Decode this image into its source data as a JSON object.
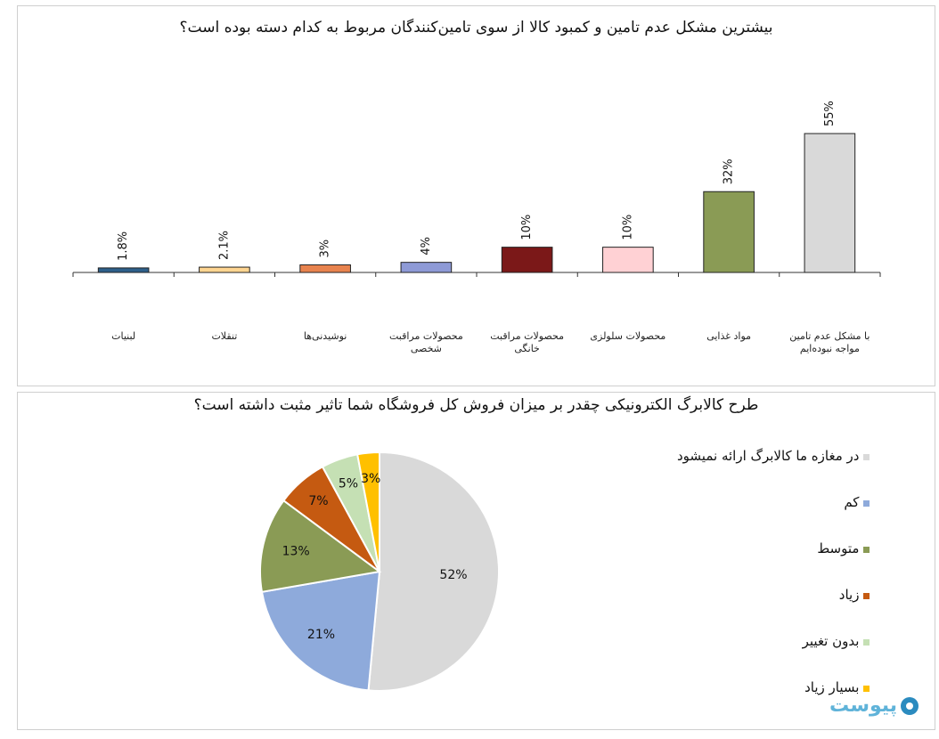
{
  "bar_chart": {
    "title": "بیشترین مشکل عدم تامین و کمبود کالا از سوی تامین‌کنندگان مربوط به کدام دسته بوده است؟"
  },
  "pie_chart": {
    "title": "طرح کالابرگ الکترونیکی چقدر بر میزان فروش کل فروشگاه شما تاثیر مثبت داشته است؟"
  },
  "chart_data": [
    {
      "type": "bar",
      "title": "بیشترین مشکل عدم تامین و کمبود کالا از سوی تامین‌کنندگان مربوط به کدام دسته بوده است؟",
      "categories": [
        [
          "لبنیات"
        ],
        [
          "تنقلات"
        ],
        [
          "نوشیدنی‌ها"
        ],
        [
          "محصولات مراقبت",
          "شخصی"
        ],
        [
          "محصولات مراقبت",
          "خانگی"
        ],
        [
          "محصولات سلولزی"
        ],
        [
          "مواد غذایی"
        ],
        [
          "با مشکل عدم تامین",
          "مواجه نبوده‌ایم"
        ]
      ],
      "values": [
        1.8,
        2.1,
        3,
        4,
        10,
        10,
        32,
        55
      ],
      "value_labels": [
        "1.8%",
        "2.1%",
        "3%",
        "4%",
        "10%",
        "10%",
        "32%",
        "55%"
      ],
      "colors": [
        "#2e5f8a",
        "#ffd591",
        "#e8834e",
        "#8e9ad6",
        "#7b1818",
        "#ffd1d4",
        "#8a9b55",
        "#d9d9d9"
      ],
      "ylim": [
        0,
        55
      ],
      "grid": false
    },
    {
      "type": "pie",
      "title": "طرح کالابرگ الکترونیکی چقدر بر میزان فروش کل فروشگاه شما تاثیر مثبت داشته است؟",
      "labels": [
        "در مغازه ما کالابرگ ارائه نمیشود",
        "کم",
        "متوسط",
        "زیاد",
        "بدون تغییر",
        "بسیار زیاد"
      ],
      "values": [
        52,
        21,
        13,
        7,
        5,
        3
      ],
      "value_labels": [
        "52%",
        "21%",
        "13%",
        "7%",
        "5%",
        "3%"
      ],
      "colors": [
        "#d9d9d9",
        "#8eaadb",
        "#8a9b55",
        "#c55a11",
        "#c5e0b4",
        "#ffc000"
      ],
      "legend_position": "right"
    }
  ],
  "watermark": {
    "text": "پیوست",
    "icon": "pivot-logo-icon"
  }
}
